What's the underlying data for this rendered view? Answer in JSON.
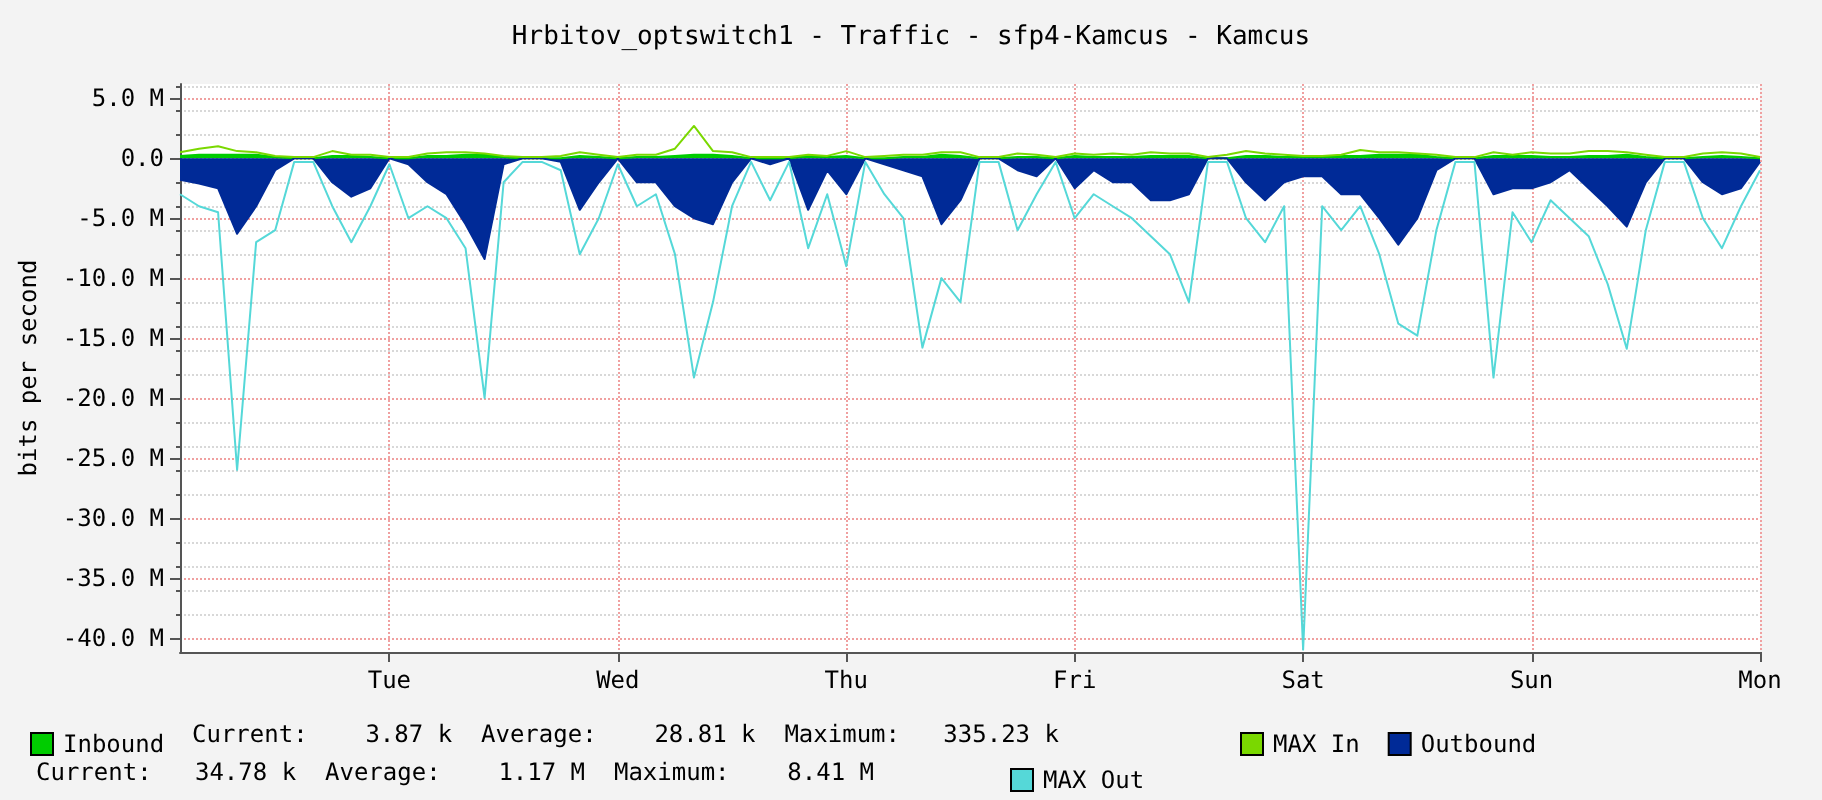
{
  "chart_data": {
    "type": "line",
    "title": "Hrbitov_optswitch1 - Traffic - sfp4-Kamcus - Kamcus",
    "ylabel": "bits per second",
    "categories": [
      null,
      null,
      null,
      null,
      null,
      null,
      null,
      null,
      null,
      null,
      null,
      "Tue",
      null,
      null,
      null,
      null,
      null,
      null,
      null,
      null,
      null,
      null,
      null,
      "Wed",
      null,
      null,
      null,
      null,
      null,
      null,
      null,
      null,
      null,
      null,
      null,
      "Thu",
      null,
      null,
      null,
      null,
      null,
      null,
      null,
      null,
      null,
      null,
      null,
      "Fri",
      null,
      null,
      null,
      null,
      null,
      null,
      null,
      null,
      null,
      null,
      null,
      "Sat",
      null,
      null,
      null,
      null,
      null,
      null,
      null,
      null,
      null,
      null,
      null,
      "Sun",
      null,
      null,
      null,
      null,
      null,
      null,
      null,
      null,
      null,
      null,
      null,
      "Mon"
    ],
    "series": [
      {
        "name": "Inbound",
        "type": "area",
        "color": "#00cc00",
        "values": [
          0.2,
          0.3,
          0.3,
          0.3,
          0.3,
          0.1,
          0,
          0,
          0.2,
          0.2,
          0.1,
          0,
          0,
          0.2,
          0.2,
          0.3,
          0.3,
          0.1,
          0,
          0,
          0,
          0.2,
          0.1,
          0,
          0.1,
          0.1,
          0.2,
          0.3,
          0.3,
          0.2,
          0,
          0,
          0,
          0.2,
          0.1,
          0.2,
          0,
          0,
          0.1,
          0.1,
          0.3,
          0.2,
          0,
          0,
          0.1,
          0.1,
          0,
          0.2,
          0.1,
          0.1,
          0.1,
          0.2,
          0.2,
          0.2,
          0,
          0,
          0.2,
          0.2,
          0.1,
          0.1,
          0.1,
          0.2,
          0.2,
          0.3,
          0.3,
          0.3,
          0.1,
          0,
          0,
          0.2,
          0.2,
          0.2,
          0.1,
          0.1,
          0.2,
          0.2,
          0.3,
          0.1,
          0,
          0,
          0.1,
          0.2,
          0.1,
          0
        ]
      },
      {
        "name": "MAX In",
        "color": "#7ad800",
        "values": [
          0.5,
          0.8,
          1.0,
          0.6,
          0.5,
          0.2,
          0.1,
          0.1,
          0.6,
          0.3,
          0.3,
          0.1,
          0.1,
          0.4,
          0.5,
          0.5,
          0.4,
          0.2,
          0.1,
          0.1,
          0.2,
          0.5,
          0.3,
          0.1,
          0.3,
          0.3,
          0.8,
          2.7,
          0.6,
          0.5,
          0.1,
          0.1,
          0.1,
          0.3,
          0.2,
          0.6,
          0.1,
          0.2,
          0.3,
          0.3,
          0.5,
          0.5,
          0.1,
          0.1,
          0.4,
          0.3,
          0.1,
          0.4,
          0.3,
          0.4,
          0.3,
          0.5,
          0.4,
          0.4,
          0.1,
          0.3,
          0.6,
          0.4,
          0.3,
          0.2,
          0.2,
          0.3,
          0.7,
          0.5,
          0.5,
          0.4,
          0.3,
          0.1,
          0.1,
          0.5,
          0.3,
          0.5,
          0.4,
          0.4,
          0.6,
          0.6,
          0.5,
          0.3,
          0.1,
          0.1,
          0.4,
          0.5,
          0.4,
          0.1
        ]
      },
      {
        "name": "Outbound",
        "type": "area",
        "color": "#002a97",
        "values": [
          -1.8,
          -2.1,
          -2.5,
          -6.3,
          -4,
          -1,
          0,
          0,
          -2,
          -3.2,
          -2.5,
          0,
          -0.5,
          -2,
          -3,
          -5.5,
          -8.4,
          -0.5,
          0,
          0,
          -0.3,
          -4.3,
          -2,
          0,
          -2,
          -2,
          -4,
          -5,
          -5.5,
          -2,
          0,
          -0.5,
          0,
          -4.3,
          -1,
          -3,
          0,
          -0.5,
          -1,
          -1.5,
          -5.5,
          -3.5,
          0,
          0,
          -1,
          -1.5,
          0,
          -2.5,
          -1,
          -2,
          -2,
          -3.5,
          -3.5,
          -3,
          0,
          0,
          -2,
          -3.5,
          -2,
          -1.5,
          -1.5,
          -3,
          -3,
          -5,
          -7.2,
          -5,
          -1,
          0,
          0,
          -3,
          -2.5,
          -2.5,
          -2,
          -1,
          -2.5,
          -4,
          -5.7,
          -2,
          0,
          0,
          -2,
          -3,
          -2.5,
          -0.3
        ]
      },
      {
        "name": "MAX Out",
        "color": "#55d8d8",
        "values": [
          -3,
          -4,
          -4.5,
          -26,
          -7,
          -6,
          -0.3,
          -0.3,
          -4,
          -7,
          -4,
          -0.5,
          -5,
          -4,
          -5,
          -7.5,
          -20,
          -2,
          -0.3,
          -0.3,
          -1,
          -8,
          -5,
          -0.5,
          -4,
          -3,
          -8,
          -18.3,
          -12,
          -4,
          -0.3,
          -3.5,
          -0.3,
          -7.5,
          -3,
          -9,
          -0.3,
          -3,
          -5,
          -15.8,
          -10,
          -12,
          -0.3,
          -0.3,
          -6,
          -3,
          -0.3,
          -5,
          -3,
          -4,
          -5,
          -6.5,
          -8,
          -12,
          -0.3,
          -0.3,
          -5,
          -7,
          -4,
          -41,
          -4,
          -6,
          -4,
          -8,
          -13.8,
          -14.8,
          -6,
          -0.3,
          -0.3,
          -18.3,
          -4.5,
          -7,
          -3.5,
          -5,
          -6.5,
          -10.5,
          -15.9,
          -6,
          -0.3,
          -0.3,
          -5,
          -7.5,
          -4,
          -1
        ]
      }
    ],
    "ylim": [
      -41.2,
      6.2
    ],
    "yticks": [
      {
        "value": -40,
        "label": "-40.0 M"
      },
      {
        "value": -35,
        "label": "-35.0 M"
      },
      {
        "value": -30,
        "label": "-30.0 M"
      },
      {
        "value": -25,
        "label": "-25.0 M"
      },
      {
        "value": -20,
        "label": "-20.0 M"
      },
      {
        "value": -15,
        "label": "-15.0 M"
      },
      {
        "value": -10,
        "label": "-10.0 M"
      },
      {
        "value": -5,
        "label": "-5.0 M"
      },
      {
        "value": 0,
        "label": "0.0"
      },
      {
        "value": 5,
        "label": "5.0 M"
      }
    ],
    "grid": true,
    "legend": "bottom",
    "marker": "none",
    "annotations": [
      "Current:    3.87 k  Average:    28.81 k  Maximum:   335.23 k",
      "Current:   34.78 k  Average:    1.17 M  Maximum:    8.41 M"
    ]
  }
}
